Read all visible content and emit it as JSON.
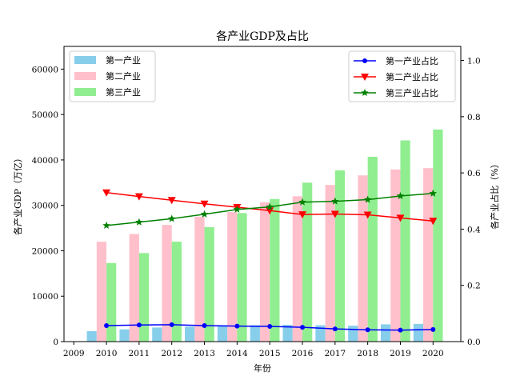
{
  "chart_data": {
    "type": "bar",
    "title": "各产业GDP及占比",
    "xlabel": "年份",
    "ylabel": "各产业GDP（万亿）",
    "y2label": "各产业占比（%）",
    "categories": [
      "2010",
      "2011",
      "2012",
      "2013",
      "2014",
      "2015",
      "2016",
      "2017",
      "2018",
      "2019",
      "2020"
    ],
    "x_ticks": [
      "2009",
      "2010",
      "2011",
      "2012",
      "2013",
      "2014",
      "2015",
      "2016",
      "2017",
      "2018",
      "2019",
      "2020"
    ],
    "xlim": [
      2008.7,
      2020.85
    ],
    "ylim": [
      0,
      65000
    ],
    "y_ticks": [
      "0",
      "10000",
      "20000",
      "30000",
      "40000",
      "50000",
      "60000"
    ],
    "y2lim": [
      0,
      1.05
    ],
    "y2_ticks": [
      "0.0",
      "0.2",
      "0.4",
      "0.6",
      "0.8",
      "1.0"
    ],
    "bar_series": [
      {
        "name": "第一产业",
        "color": "#87ceeb",
        "values": [
          2300,
          2700,
          3100,
          3300,
          3600,
          3600,
          3700,
          3600,
          3500,
          3800,
          3900
        ]
      },
      {
        "name": "第二产业",
        "color": "#ffc0cb",
        "values": [
          22000,
          23700,
          25700,
          27500,
          28500,
          30700,
          32000,
          34500,
          36600,
          37900,
          38200
        ]
      },
      {
        "name": "第三产业",
        "color": "#90ee90",
        "values": [
          17300,
          19500,
          22000,
          25200,
          28300,
          31400,
          35000,
          37700,
          40700,
          44300,
          46700
        ]
      }
    ],
    "line_series": [
      {
        "name": "第一产业占比",
        "color": "#0000ff",
        "marker": "circle",
        "values": [
          0.057,
          0.059,
          0.06,
          0.057,
          0.055,
          0.054,
          0.051,
          0.045,
          0.042,
          0.041,
          0.043
        ]
      },
      {
        "name": "第二产业占比",
        "color": "#ff0000",
        "marker": "triangle-down",
        "values": [
          0.53,
          0.516,
          0.503,
          0.49,
          0.478,
          0.466,
          0.452,
          0.454,
          0.451,
          0.44,
          0.429
        ]
      },
      {
        "name": "第三产业占比",
        "color": "#008000",
        "marker": "star",
        "values": [
          0.413,
          0.425,
          0.437,
          0.453,
          0.47,
          0.479,
          0.496,
          0.499,
          0.505,
          0.518,
          0.527
        ]
      }
    ],
    "grid": false,
    "legend_bars_position": "top-left",
    "legend_lines_position": "top-right"
  }
}
